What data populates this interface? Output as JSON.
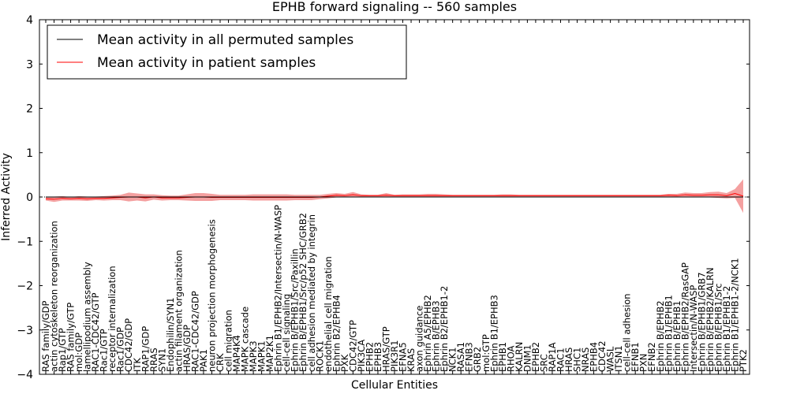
{
  "chart_data": {
    "type": "line",
    "title": "EPHB forward signaling -- 560 samples",
    "xlabel": "Cellular Entities",
    "ylabel": "Inferred Activity",
    "ylim": [
      -4,
      4
    ],
    "yticks": [
      -4,
      -3,
      -2,
      -1,
      0,
      1,
      2,
      3,
      4
    ],
    "baseline": 0,
    "legend": {
      "position": "top-left",
      "entries": [
        {
          "label": "Mean activity in all permuted samples",
          "color": "#000000"
        },
        {
          "label": "Mean activity in patient samples",
          "color": "#ff0000"
        }
      ]
    },
    "colors": {
      "permuted": "#000000",
      "patient": "#ff0000",
      "band": "#f08080"
    },
    "categories": [
      "RAS family/GDP",
      "actin cytoskeleton reorganization",
      "Rap1/GTP",
      "RAS family/GTP",
      "mol:GDP",
      "lamellipodium assembly",
      "RAC1-CDC42/GTP",
      "Rac1/GTP",
      "receptor internalization",
      "Rac1/GDP",
      "CDC42/GDP",
      "ITK",
      "RAP1/GDP",
      "RRAS",
      "SYN1",
      "Endophilin/SYN1",
      "actin filament organization",
      "HRAS/GDP",
      "RAC1-CDC42/GDP",
      "PAK1",
      "neuron projection morphogenesis",
      "CRK",
      "cell migration",
      "MAP4K4",
      "MAPK cascade",
      "MAPK3",
      "MAPK1",
      "MAP2K1",
      "Ephrin B1/EPHB2/Intersectin/N-WASP",
      "cell-cell signaling",
      "Ephrin B/EPHB1/Src/Paxillin",
      "Ephrin B/EPHB1/Src/p52 SHC/GRB2",
      "cell adhesion mediated by integrin",
      "ROCK1",
      "endothelial cell migration",
      "Ephrin B2/EPHB4",
      "PXK",
      "CDC42/GTP",
      "PIK3CA",
      "EPHB2",
      "EPHB3",
      "HRAS/GTP",
      "PIK3R1",
      "EFNA5",
      "KRAS",
      "axon guidance",
      "Ephrin A5/EPHB2",
      "Ephrin B/EPHB3",
      "Ephrin B2/EPHB1-2",
      "NCK1",
      "RASA1",
      "EFNB3",
      "GRB2",
      "mol:GTP",
      "Ephrin B1/EPHB3",
      "EPHB1",
      "RHOA",
      "KALRN",
      "DNM1",
      "EPHB2",
      "SRC",
      "RAP1A",
      "RAC1",
      "HRAS",
      "SHC1",
      "NRAS",
      "EPHB4",
      "CDC42",
      "WASL",
      "ITSN1",
      "cell-cell adhesion",
      "EFNB1",
      "PXN",
      "EFNB2",
      "Ephrin B/EPHB2",
      "Ephrin B1/EPHB1",
      "Ephrin B/EPHB1",
      "Ephrin B/EPHB2/RasGAP",
      "Intersectin/N-WASP",
      "Ephrin B/EPHB1/GRB7",
      "Ephrin B/EPHB2/KALRN",
      "Ephrin B/EPHB1/Src",
      "Ephrin B1/EPHB1-2",
      "Ephrin B1/EPHB1-2/NCK1",
      "PTK2"
    ],
    "series": [
      {
        "name": "Mean activity in all permuted samples",
        "values": [
          0,
          0,
          0,
          0,
          0,
          0,
          0,
          0,
          0,
          0,
          0,
          0,
          0,
          0,
          0,
          0,
          0,
          0,
          0,
          0,
          0,
          0,
          0,
          0,
          0,
          0,
          0,
          0,
          0,
          0,
          0,
          0,
          0,
          0,
          0,
          0,
          0,
          0,
          0,
          0,
          0,
          0,
          0,
          0,
          0,
          0,
          0,
          0,
          0,
          0,
          0,
          0,
          0,
          0,
          0,
          0,
          0,
          0,
          0,
          0,
          0,
          0,
          0,
          0,
          0,
          0,
          0,
          0,
          0,
          0,
          0,
          0,
          0,
          0,
          0,
          0,
          0,
          0,
          0,
          0,
          0,
          0,
          0,
          0,
          0
        ]
      },
      {
        "name": "Mean activity in patient samples",
        "values": [
          -0.04,
          -0.05,
          -0.03,
          -0.04,
          -0.03,
          -0.04,
          -0.03,
          -0.03,
          -0.02,
          -0.01,
          0.0,
          0.0,
          -0.02,
          0.0,
          -0.02,
          -0.02,
          -0.02,
          -0.01,
          0.0,
          0.0,
          -0.01,
          -0.01,
          -0.01,
          -0.01,
          -0.01,
          -0.01,
          -0.01,
          -0.01,
          -0.01,
          -0.01,
          -0.01,
          -0.01,
          -0.01,
          0.0,
          0.02,
          0.04,
          0.03,
          0.05,
          0.03,
          0.03,
          0.03,
          0.04,
          0.03,
          0.03,
          0.03,
          0.03,
          0.03,
          0.03,
          0.03,
          0.03,
          0.03,
          0.03,
          0.03,
          0.03,
          0.03,
          0.03,
          0.03,
          0.03,
          0.03,
          0.03,
          0.03,
          0.03,
          0.03,
          0.03,
          0.03,
          0.03,
          0.03,
          0.03,
          0.03,
          0.03,
          0.03,
          0.03,
          0.03,
          0.03,
          0.03,
          0.04,
          0.03,
          0.05,
          0.04,
          0.04,
          0.05,
          0.05,
          0.03,
          0.08,
          0.02
        ]
      }
    ],
    "band_half_width": [
      0.04,
      0.06,
      0.05,
      0.04,
      0.05,
      0.05,
      0.04,
      0.05,
      0.05,
      0.06,
      0.1,
      0.08,
      0.08,
      0.06,
      0.06,
      0.05,
      0.05,
      0.07,
      0.09,
      0.09,
      0.08,
      0.06,
      0.06,
      0.06,
      0.06,
      0.07,
      0.07,
      0.07,
      0.07,
      0.07,
      0.06,
      0.06,
      0.06,
      0.05,
      0.05,
      0.05,
      0.04,
      0.06,
      0.03,
      0.02,
      0.02,
      0.05,
      0.02,
      0.03,
      0.03,
      0.03,
      0.04,
      0.04,
      0.03,
      0.02,
      0.02,
      0.02,
      0.02,
      0.02,
      0.02,
      0.03,
      0.03,
      0.02,
      0.02,
      0.02,
      0.02,
      0.02,
      0.02,
      0.02,
      0.02,
      0.02,
      0.02,
      0.02,
      0.02,
      0.02,
      0.02,
      0.02,
      0.02,
      0.02,
      0.02,
      0.03,
      0.04,
      0.05,
      0.05,
      0.05,
      0.06,
      0.07,
      0.06,
      0.1,
      0.38
    ]
  }
}
